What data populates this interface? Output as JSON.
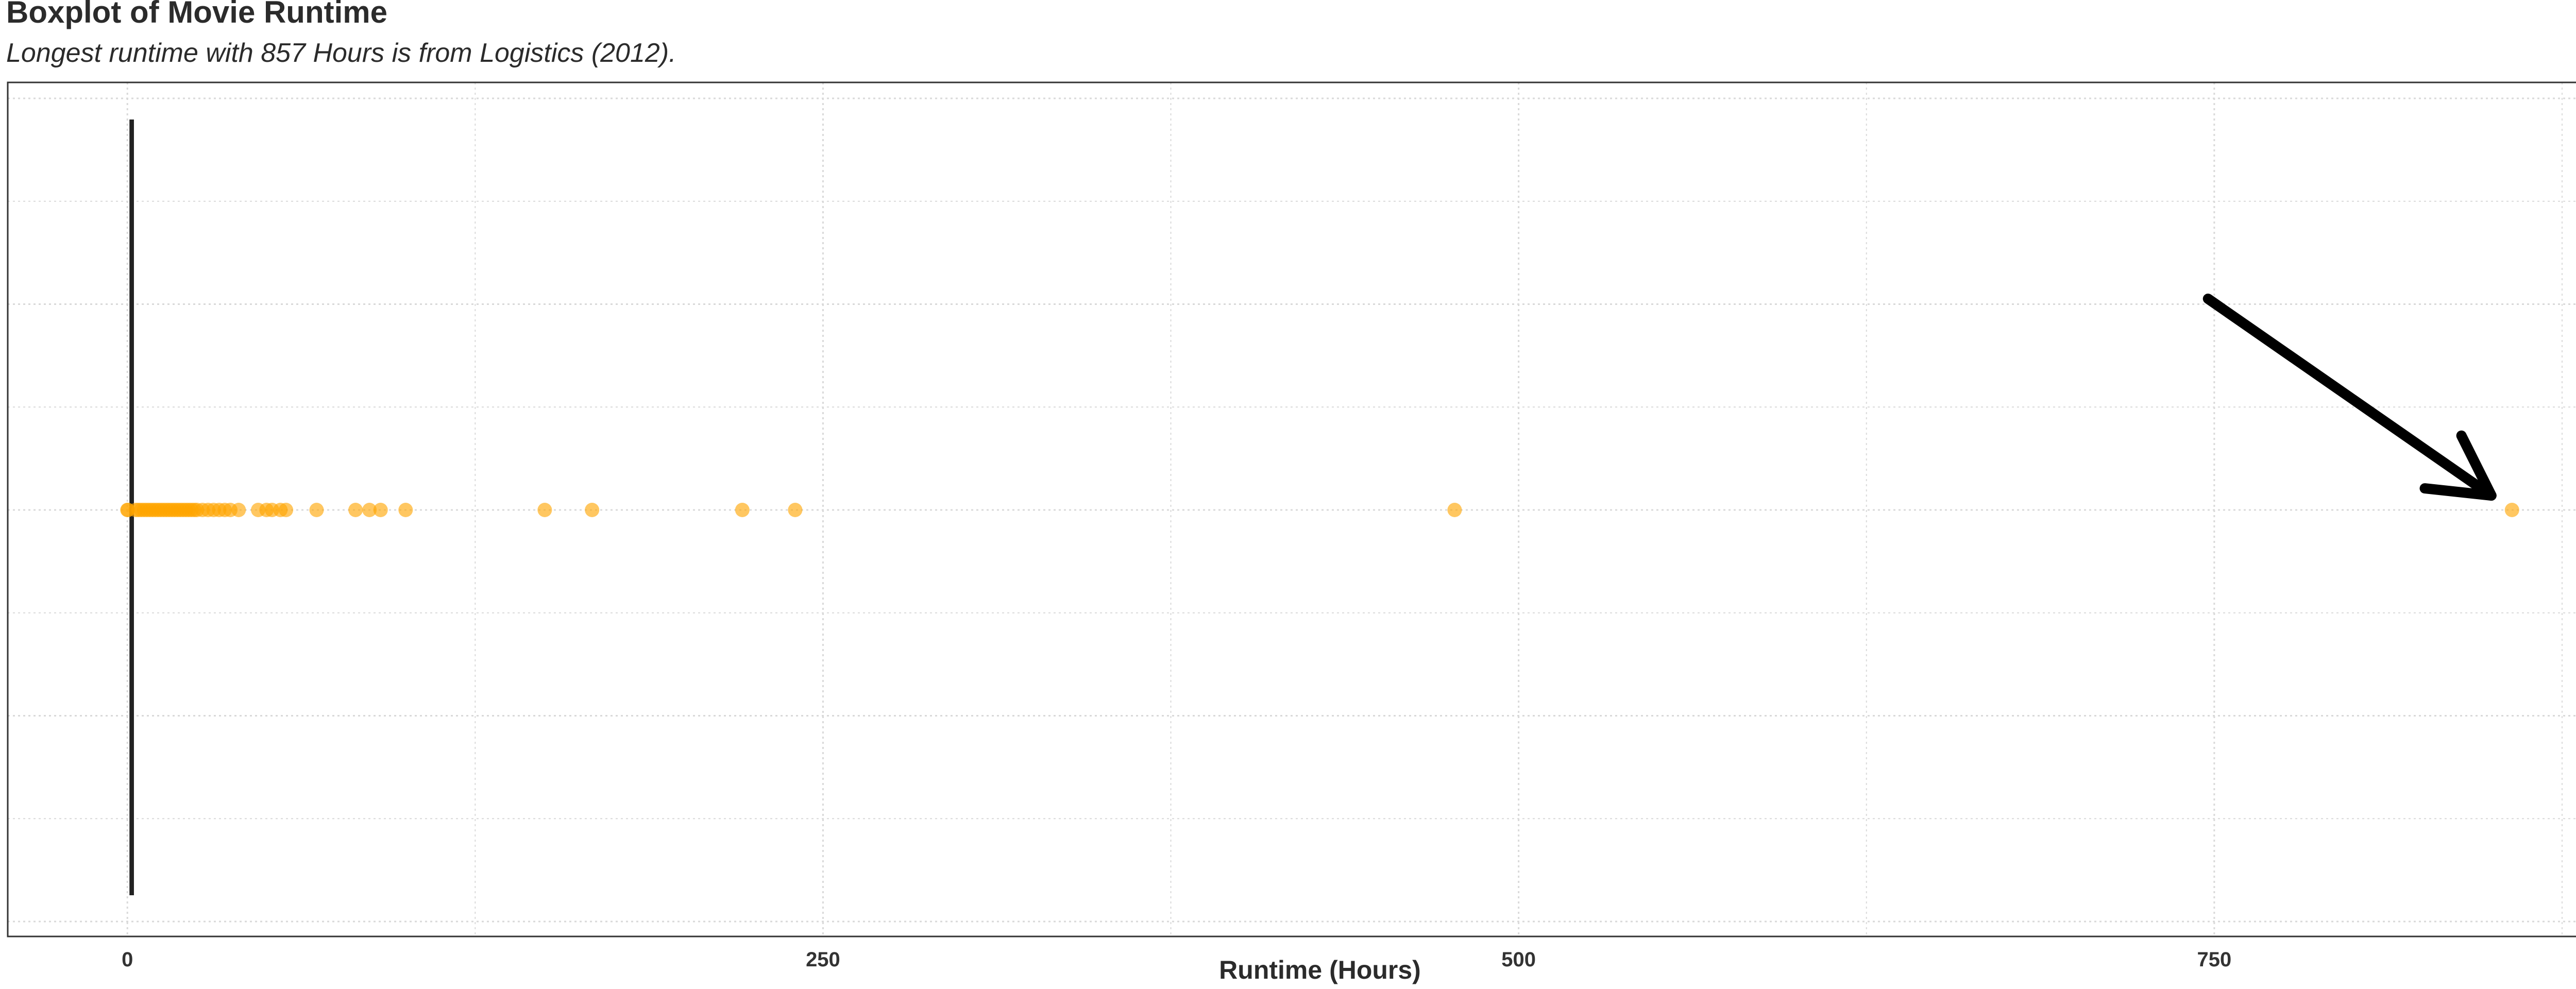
{
  "chart_data": {
    "type": "boxplot",
    "title": "Boxplot of Movie Runtime",
    "subtitle": "Longest runtime with 857 Hours is from Logistics (2012).",
    "xlabel": "Runtime (Hours)",
    "ylabel": "",
    "xlim": [
      -43,
      900
    ],
    "x_ticks": [
      0,
      250,
      500,
      750
    ],
    "grid": true,
    "orientation": "horizontal",
    "box": {
      "min": 0,
      "q1": 1.3,
      "median": 1.5,
      "q3": 1.8,
      "max": 2.6
    },
    "outliers": [
      0,
      0.2,
      3,
      4,
      5,
      6,
      7,
      8,
      9,
      10,
      11,
      12,
      13,
      14,
      15,
      16,
      17,
      18,
      19,
      20,
      21,
      22,
      23,
      24,
      25,
      27,
      29,
      31,
      33,
      35,
      37,
      40,
      47,
      50,
      52,
      55,
      57,
      68,
      82,
      87,
      91,
      100,
      150,
      167,
      221,
      240,
      477,
      857
    ],
    "annotation": {
      "type": "arrow",
      "target_x": 857
    },
    "colors": {
      "points": "#FFA500",
      "box": "#222222",
      "arrow": "#000000",
      "grid": "#d9d9d9",
      "border": "#333333"
    }
  }
}
